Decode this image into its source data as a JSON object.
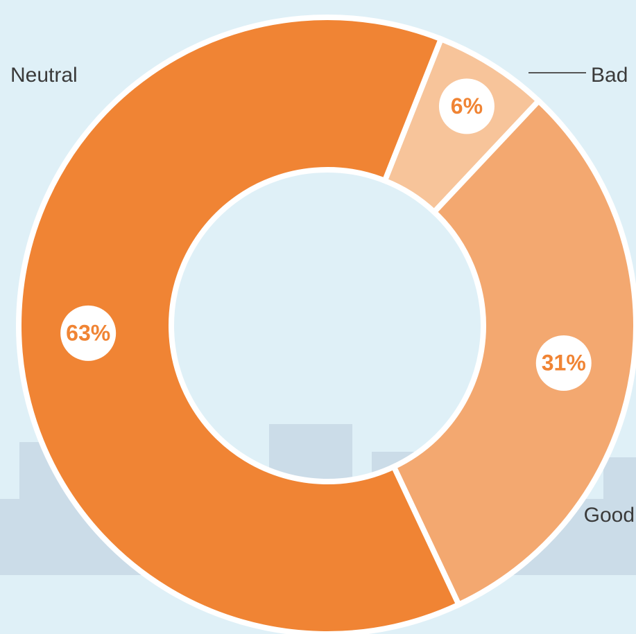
{
  "chart_data": {
    "type": "donut",
    "categories": [
      "Bad",
      "Neutral",
      "Good"
    ],
    "values": [
      6,
      31,
      63
    ],
    "value_labels": [
      "6%",
      "31%",
      "63%"
    ],
    "colors": [
      "#f7c49a",
      "#f3a870",
      "#f08434"
    ]
  }
}
